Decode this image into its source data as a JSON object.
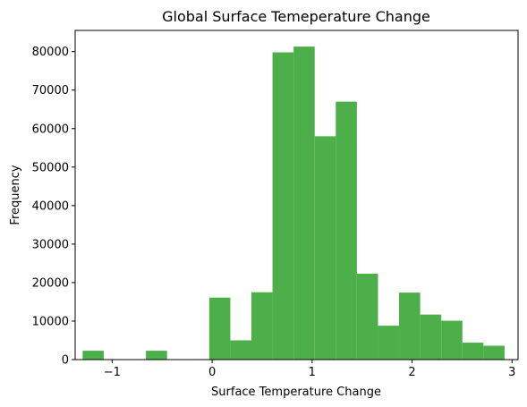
{
  "chart_data": {
    "type": "bar",
    "title": "Global Surface Temeperature Change",
    "xlabel": "Surface Temperature Change",
    "ylabel": "Frequency",
    "xlim": [
      -1.37,
      3.06
    ],
    "ylim": [
      0,
      85500
    ],
    "x_ticks": [
      -1,
      0,
      1,
      2,
      3
    ],
    "x_tick_labels": [
      "−1",
      "0",
      "1",
      "2",
      "3"
    ],
    "y_ticks": [
      0,
      10000,
      20000,
      30000,
      40000,
      50000,
      60000,
      70000,
      80000
    ],
    "y_tick_labels": [
      "0",
      "10000",
      "20000",
      "30000",
      "40000",
      "50000",
      "60000",
      "70000",
      "80000"
    ],
    "bar_color": "#4daf4a",
    "grid": false,
    "bins": [
      {
        "x0": -1.295,
        "x1": -1.084,
        "value": 2300
      },
      {
        "x0": -1.084,
        "x1": -0.873,
        "value": 0
      },
      {
        "x0": -0.873,
        "x1": -0.662,
        "value": 0
      },
      {
        "x0": -0.662,
        "x1": -0.451,
        "value": 2300
      },
      {
        "x0": -0.451,
        "x1": -0.24,
        "value": 0
      },
      {
        "x0": -0.24,
        "x1": -0.029,
        "value": 0
      },
      {
        "x0": -0.029,
        "x1": 0.182,
        "value": 16100
      },
      {
        "x0": 0.182,
        "x1": 0.393,
        "value": 5000
      },
      {
        "x0": 0.393,
        "x1": 0.604,
        "value": 17500
      },
      {
        "x0": 0.604,
        "x1": 0.815,
        "value": 79800
      },
      {
        "x0": 0.815,
        "x1": 1.026,
        "value": 81300
      },
      {
        "x0": 1.026,
        "x1": 1.237,
        "value": 58000
      },
      {
        "x0": 1.237,
        "x1": 1.448,
        "value": 67000
      },
      {
        "x0": 1.448,
        "x1": 1.659,
        "value": 22300
      },
      {
        "x0": 1.659,
        "x1": 1.87,
        "value": 8800
      },
      {
        "x0": 1.87,
        "x1": 2.081,
        "value": 17400
      },
      {
        "x0": 2.081,
        "x1": 2.292,
        "value": 11700
      },
      {
        "x0": 2.292,
        "x1": 2.503,
        "value": 10100
      },
      {
        "x0": 2.503,
        "x1": 2.714,
        "value": 4400
      },
      {
        "x0": 2.714,
        "x1": 2.925,
        "value": 3600
      }
    ]
  }
}
